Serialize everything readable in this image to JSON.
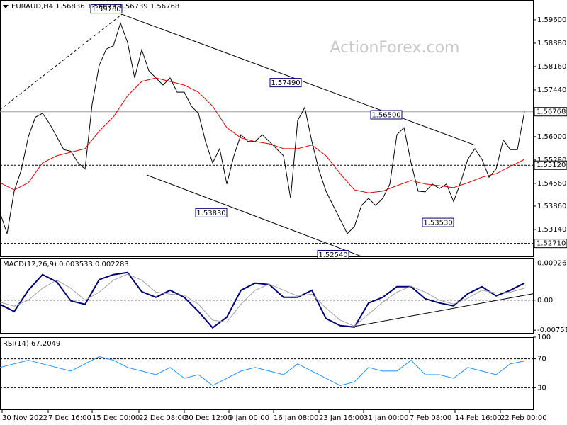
{
  "watermark": "ActionForex.com",
  "chart_data": [
    {
      "type": "line",
      "title": "EURAUD,H4  1.56836 1.56873 1.56739 1.56768",
      "xlim": [
        0,
        75.2
      ],
      "ylim": [
        1.5231,
        1.6021
      ],
      "yticks": [
        {
          "value": 1.596,
          "label": "1.59600"
        },
        {
          "value": 1.5888,
          "label": "1.58880"
        },
        {
          "value": 1.5816,
          "label": "1.58160"
        },
        {
          "value": 1.5744,
          "label": "1.57440"
        },
        {
          "value": 1.56,
          "label": "1.56000"
        },
        {
          "value": 1.5528,
          "label": "1.55280"
        },
        {
          "value": 1.5456,
          "label": "1.54560"
        },
        {
          "value": 1.5386,
          "label": "1.53860"
        },
        {
          "value": 1.5314,
          "label": "1.53140"
        }
      ],
      "xticks": [
        {
          "value": 0.3,
          "label": "30 Nov 2022"
        },
        {
          "value": 6.8,
          "label": "7 Dec 16:00"
        },
        {
          "value": 13,
          "label": "15 Dec 00:00"
        },
        {
          "value": 19.6,
          "label": "22 Dec 08:00"
        },
        {
          "value": 26,
          "label": "30 Dec 12:00"
        },
        {
          "value": 32.3,
          "label": "9 Jan 00:00"
        },
        {
          "value": 38.6,
          "label": "16 Jan 08:00"
        },
        {
          "value": 45,
          "label": "23 Jan 16:00"
        },
        {
          "value": 51.3,
          "label": "31 Jan 00:00"
        },
        {
          "value": 57.8,
          "label": "7 Feb 08:00"
        },
        {
          "value": 64.2,
          "label": "14 Feb 16:00"
        },
        {
          "value": 70.6,
          "label": "22 Feb 00:00"
        }
      ],
      "series": [
        {
          "color": "#000000",
          "values": [
            1.5366,
            1.5301,
            1.5432,
            1.5497,
            1.56,
            1.566,
            1.5672,
            1.564,
            1.56,
            1.556,
            1.5555,
            1.552,
            1.55,
            1.57,
            1.582,
            1.587,
            1.588,
            1.595,
            1.589,
            1.5781,
            1.5868,
            1.5803,
            1.5781,
            1.5759,
            1.5781,
            1.5737,
            1.5737,
            1.5694,
            1.5672,
            1.5585,
            1.5519,
            1.5563,
            1.5454,
            1.5541,
            1.5606,
            1.5585,
            1.5585,
            1.5606,
            1.5585,
            1.5563,
            1.5541,
            1.541,
            1.565,
            1.569,
            1.5585,
            1.5497,
            1.5432,
            1.5388,
            1.5345,
            1.5301,
            1.5323,
            1.5388,
            1.541,
            1.5388,
            1.541,
            1.5454,
            1.5606,
            1.5628,
            1.5519,
            1.5432,
            1.543,
            1.5454,
            1.544,
            1.5454,
            1.54,
            1.546,
            1.553,
            1.5563,
            1.553,
            1.5475,
            1.55,
            1.559,
            1.556,
            1.556,
            1.5677
          ]
        },
        {
          "color": "#e00000",
          "x": [
            0,
            2,
            4,
            6,
            8,
            10,
            12,
            14,
            16,
            18,
            20,
            22,
            24,
            26,
            28,
            30,
            32,
            34,
            36,
            38,
            40,
            42,
            44,
            46,
            48,
            50,
            52,
            54,
            56,
            58,
            60,
            62,
            64,
            66,
            68,
            70,
            72,
            74
          ],
          "values": [
            1.5458,
            1.5436,
            1.5458,
            1.5519,
            1.5541,
            1.5552,
            1.5563,
            1.5617,
            1.5661,
            1.5726,
            1.577,
            1.5781,
            1.577,
            1.5759,
            1.5737,
            1.5694,
            1.5628,
            1.5596,
            1.5585,
            1.5578,
            1.5563,
            1.5563,
            1.5574,
            1.5541,
            1.5486,
            1.5436,
            1.5427,
            1.5432,
            1.5449,
            1.5465,
            1.5454,
            1.5449,
            1.5443,
            1.5458,
            1.5475,
            1.5486,
            1.5508,
            1.553
          ]
        }
      ],
      "levels": [
        {
          "value": 1.56768,
          "label": "1.56768",
          "style": "solid"
        },
        {
          "value": 1.5512,
          "label": "1.55120",
          "style": "dashed"
        },
        {
          "value": 1.5271,
          "label": "1.52710",
          "style": "dashed"
        }
      ],
      "annotations": [
        {
          "x": 17.2,
          "value": 1.5976,
          "label": "1.59760",
          "position": "above"
        },
        {
          "x": 42.5,
          "value": 1.5749,
          "label": "1.57490",
          "position": "above"
        },
        {
          "x": 56.7,
          "value": 1.565,
          "label": "1.56500",
          "position": "above"
        },
        {
          "x": 32,
          "value": 1.5383,
          "label": "1.53830",
          "position": "below"
        },
        {
          "x": 49.2,
          "value": 1.5254,
          "label": "1.52540",
          "position": "below"
        },
        {
          "x": 64,
          "value": 1.5353,
          "label": "1.53530",
          "position": "below"
        }
      ],
      "trendlines": [
        {
          "x": [
            17.2,
            67
          ],
          "values": [
            1.5977,
            1.5574
          ],
          "style": "solid"
        },
        {
          "x": [
            20.7,
            51
          ],
          "values": [
            1.5482,
            1.5231
          ],
          "style": "solid"
        },
        {
          "x": [
            0,
            17.2
          ],
          "values": [
            1.5683,
            1.5977
          ],
          "style": "dashed"
        }
      ]
    },
    {
      "type": "line",
      "title": "MACD(12,26,9) 0.003533 0.002283",
      "xlim": [
        0,
        75.2
      ],
      "ylim": [
        -0.0082,
        0.0106
      ],
      "yticks": [
        0.009263,
        {
          "value": 0,
          "label": "0.00"
        },
        -0.007517
      ],
      "levels": [
        {
          "value": 0,
          "style": "dashed"
        }
      ],
      "series": [
        {
          "color": "#00007a",
          "x": [
            0,
            2,
            4,
            6,
            8,
            10,
            12,
            14,
            16,
            18,
            20,
            22,
            24,
            26,
            28,
            30,
            32,
            34,
            36,
            38,
            40,
            42,
            44,
            46,
            48,
            50,
            52,
            54,
            56,
            58,
            60,
            62,
            64,
            66,
            68,
            70,
            72,
            74
          ],
          "values": [
            -0.00106,
            -0.00284,
            0.00248,
            0.00639,
            0.00461,
            -0.00018,
            -0.00106,
            0.00514,
            0.00639,
            0.00692,
            0.00213,
            0.00071,
            0.00248,
            0.00071,
            -0.00284,
            -0.00692,
            -0.00426,
            0.00248,
            0.00426,
            0.0039,
            0.00071,
            0.00071,
            0.00248,
            -0.00461,
            -0.00639,
            -0.00674,
            -0.00071,
            0.00071,
            0.00337,
            0.00337,
            0.00035,
            -0.00071,
            -0.00142,
            0.0016,
            0.00337,
            0.00106,
            0.00248,
            0.00426
          ]
        },
        {
          "color": "#a0a0a0",
          "x": [
            0,
            2,
            4,
            6,
            8,
            10,
            12,
            14,
            16,
            18,
            20,
            22,
            24,
            26,
            28,
            30,
            32,
            34,
            36,
            38,
            40,
            42,
            44,
            46,
            48,
            50,
            52,
            54,
            56,
            58,
            60,
            62,
            64,
            66,
            68,
            70,
            72,
            74
          ],
          "values": [
            -0.0005,
            -0.0015,
            0,
            0.003,
            0.005,
            0.003,
            0,
            0.002,
            0.005,
            0.0065,
            0.005,
            0.002,
            0.0015,
            0.0012,
            -0.001,
            -0.005,
            -0.0055,
            -0.001,
            0.0025,
            0.004,
            0.0025,
            0.001,
            0.0015,
            -0.002,
            -0.005,
            -0.0065,
            -0.0035,
            -0.0005,
            0.002,
            0.0035,
            0.002,
            0,
            -0.001,
            0.0005,
            0.0025,
            0.0018,
            0.002,
            0.003
          ]
        }
      ],
      "trendlines": [
        {
          "x": [
            49.5,
            75.2
          ],
          "values": [
            -0.00674,
            0.0016
          ],
          "style": "solid"
        }
      ]
    },
    {
      "type": "line",
      "title": "RSI(14) 67.2049",
      "xlim": [
        0,
        75.2
      ],
      "ylim": [
        0,
        100
      ],
      "yticks": [
        100,
        70,
        30
      ],
      "levels": [
        {
          "value": 70,
          "style": "dashed"
        },
        {
          "value": 30,
          "style": "dashed"
        }
      ],
      "series": [
        {
          "color": "#1e90ff",
          "x": [
            0,
            2,
            4,
            6,
            8,
            10,
            12,
            14,
            16,
            18,
            20,
            22,
            24,
            26,
            28,
            30,
            32,
            34,
            36,
            38,
            40,
            42,
            44,
            46,
            48,
            50,
            52,
            54,
            56,
            58,
            60,
            62,
            64,
            66,
            68,
            70,
            72,
            74
          ],
          "values": [
            58,
            63,
            68,
            63,
            58,
            53,
            63,
            73,
            68,
            58,
            53,
            48,
            58,
            43,
            48,
            33,
            43,
            53,
            58,
            53,
            48,
            63,
            53,
            43,
            33,
            38,
            58,
            53,
            53,
            68,
            48,
            48,
            43,
            58,
            53,
            48,
            63,
            67
          ]
        }
      ]
    }
  ]
}
